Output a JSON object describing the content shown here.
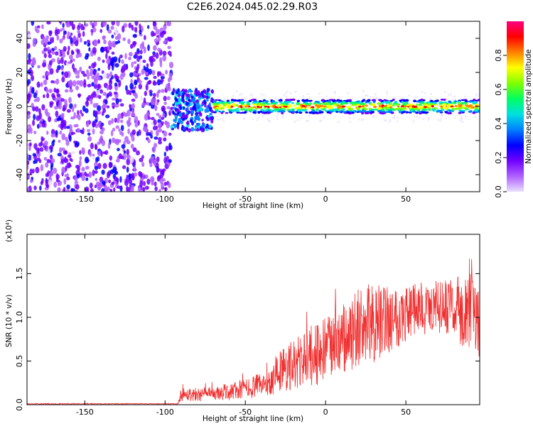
{
  "figure_title": "C2E6.2024.045.02.29.R03",
  "colors": {
    "snr_line": "#f03030",
    "colormap": [
      "#e8e0ff",
      "#b060ff",
      "#7000ff",
      "#0000ff",
      "#0080ff",
      "#00e0e0",
      "#00ff60",
      "#80ff00",
      "#ffff00",
      "#ff8000",
      "#ff0000",
      "#ff0080"
    ]
  },
  "chart_data": [
    {
      "type": "heatmap",
      "title": "",
      "xlabel": "Height of straight line (km)",
      "ylabel": "Frequency (Hz)",
      "xlim": [
        -186,
        96
      ],
      "ylim": [
        -50,
        50
      ],
      "x_ticks": [
        -150,
        -100,
        -50,
        0,
        50
      ],
      "y_ticks": [
        -40,
        -20,
        0,
        20,
        40
      ],
      "colorbar": {
        "label": "Normalized spectral amplitude",
        "range": [
          0,
          1
        ],
        "ticks": [
          "0.0",
          "0.2",
          "0.4",
          "0.6",
          "0.8"
        ],
        "tick_values": [
          0.0,
          0.2,
          0.4,
          0.6,
          0.8
        ]
      },
      "regions": [
        {
          "x_range": [
            -186,
            -96
          ],
          "freq_range": [
            -50,
            50
          ],
          "level": 0.2,
          "description": "broadband noise"
        },
        {
          "x_range": [
            -96,
            -70
          ],
          "freq_center": -2,
          "freq_halfwidth": 12,
          "level": 0.35
        },
        {
          "x_range": [
            -70,
            96
          ],
          "freq_center": 0,
          "freq_halfwidth": 4,
          "peak_level": 0.95
        }
      ]
    },
    {
      "type": "line",
      "title": "",
      "xlabel": "Height of straight line (km)",
      "ylabel": "SNR (10 * v/v)",
      "scale_label": "(x10⁴)",
      "xlim": [
        -186,
        96
      ],
      "ylim": [
        0,
        1.95
      ],
      "x_ticks": [
        -150,
        -100,
        -50,
        0,
        50
      ],
      "y_ticks": [
        0.0,
        0.5,
        1.0,
        1.5
      ],
      "y_tick_labels": [
        "0.0",
        "0.5",
        "1.0",
        "1.5"
      ],
      "envelope": {
        "x": [
          -186,
          -92,
          -90,
          -70,
          -50,
          -35,
          -30,
          -20,
          -10,
          0,
          10,
          20,
          30,
          40,
          50,
          60,
          70,
          80,
          90,
          96
        ],
        "mean": [
          0.01,
          0.01,
          0.12,
          0.12,
          0.18,
          0.25,
          0.38,
          0.45,
          0.55,
          0.62,
          0.72,
          0.85,
          0.92,
          1.0,
          1.05,
          1.1,
          1.12,
          1.1,
          1.05,
          1.0
        ],
        "spread": [
          0.005,
          0.005,
          0.08,
          0.08,
          0.12,
          0.15,
          0.25,
          0.3,
          0.35,
          0.38,
          0.42,
          0.45,
          0.45,
          0.4,
          0.35,
          0.3,
          0.3,
          0.35,
          0.45,
          0.5
        ]
      }
    }
  ]
}
